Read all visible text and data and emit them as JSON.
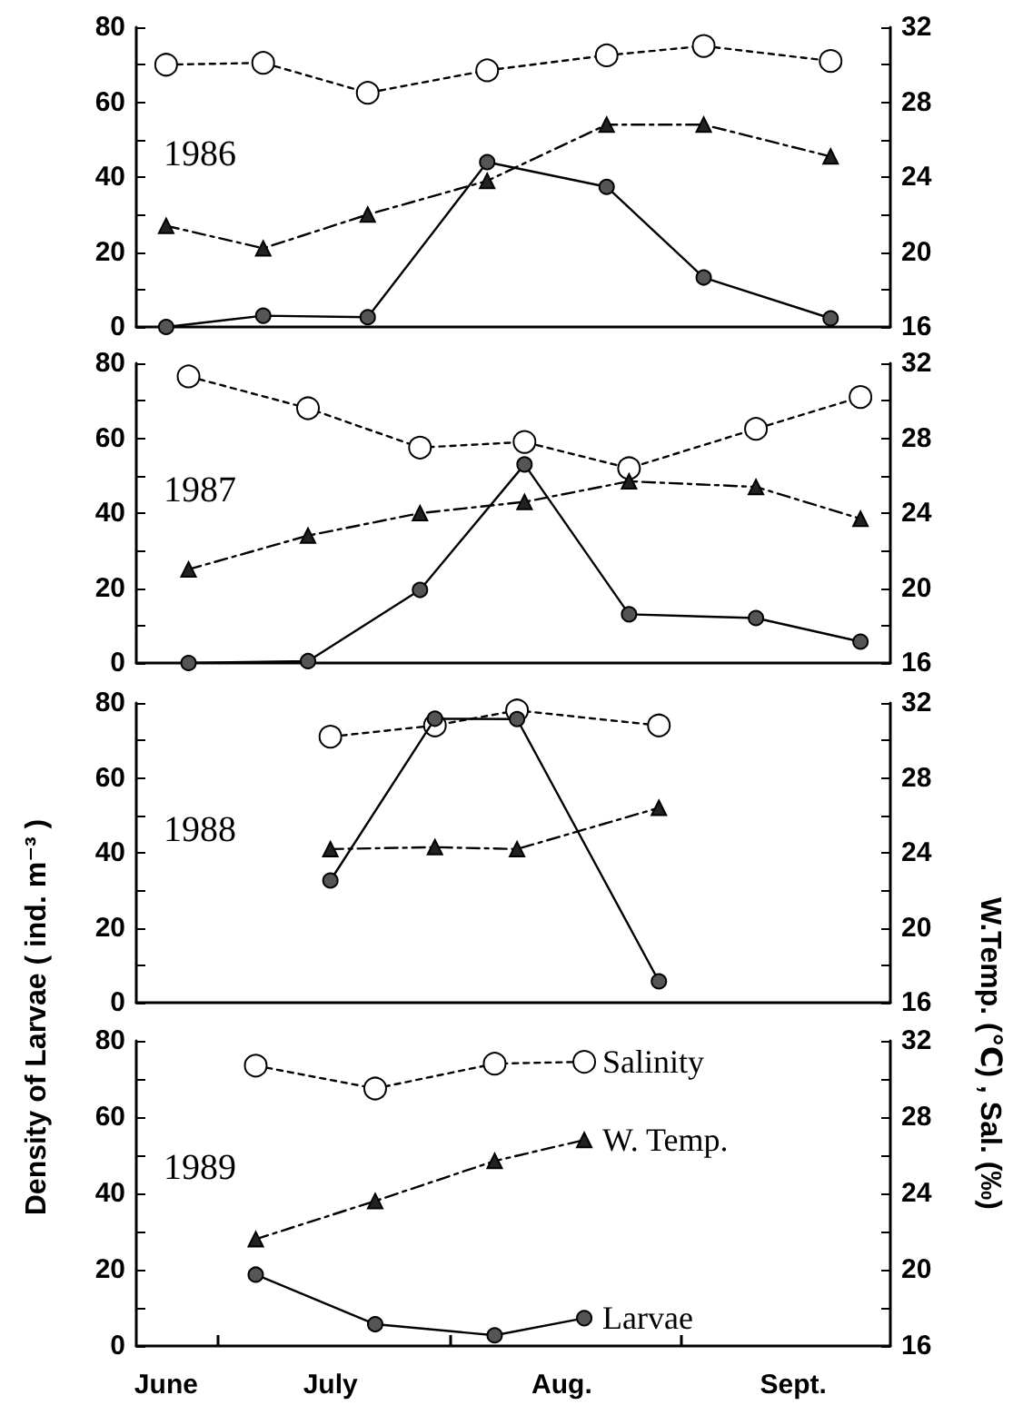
{
  "chart_data": [
    {
      "type": "line",
      "annotations": [
        "1986"
      ],
      "x": [
        "--06-24",
        "--07-07",
        "--07-21",
        "--08-06",
        "--08-22",
        "--09-04",
        "--09-21"
      ],
      "xlim": [
        "--06-20",
        "--09-29"
      ],
      "ylim": [
        0,
        80
      ],
      "yticks": [
        0,
        {
          "value": 10,
          "label": null
        },
        20,
        {
          "value": 30,
          "label": null
        },
        40,
        {
          "value": 50,
          "label": null
        },
        60,
        {
          "value": 70,
          "label": null
        },
        80
      ],
      "y2lim": [
        16,
        32
      ],
      "y2ticks": [
        16,
        {
          "value": 18,
          "label": null
        },
        20,
        {
          "value": 22,
          "label": null
        },
        24,
        {
          "value": 26,
          "label": null
        },
        28,
        {
          "value": 30,
          "label": null
        },
        32
      ],
      "tick_labels": "y",
      "grid": false,
      "series": [
        {
          "color": "#ffffff",
          "marker": "circle",
          "line_style": "dotted",
          "axis": "y2",
          "values": [
            30.0,
            30.1,
            28.5,
            29.7,
            30.5,
            31.0,
            30.2
          ]
        },
        {
          "color": "#222222",
          "marker": "triangle",
          "line_style": "dashed",
          "axis": "y2",
          "values": [
            21.4,
            20.2,
            22.0,
            23.8,
            26.8,
            26.8,
            25.1
          ]
        },
        {
          "color": "#555555",
          "marker": "circle",
          "line_style": "solid",
          "values": [
            0,
            3,
            2.6,
            44,
            37.4,
            13.2,
            2.3
          ]
        }
      ]
    },
    {
      "type": "line",
      "annotations": [
        "1987"
      ],
      "x": [
        "--06-27",
        "--07-13",
        "--07-28",
        "--08-11",
        "--08-25",
        "--09-11",
        "--09-25"
      ],
      "xlim": [
        "--06-20",
        "--09-29"
      ],
      "ylim": [
        0,
        80
      ],
      "yticks": [
        0,
        {
          "value": 10,
          "label": null
        },
        20,
        {
          "value": 30,
          "label": null
        },
        40,
        {
          "value": 50,
          "label": null
        },
        60,
        {
          "value": 70,
          "label": null
        },
        80
      ],
      "y2lim": [
        16,
        32
      ],
      "y2ticks": [
        16,
        {
          "value": 18,
          "label": null
        },
        20,
        {
          "value": 22,
          "label": null
        },
        24,
        {
          "value": 26,
          "label": null
        },
        28,
        {
          "value": 30,
          "label": null
        },
        32
      ],
      "tick_labels": "y",
      "grid": false,
      "series": [
        {
          "color": "#ffffff",
          "marker": "circle",
          "line_style": "dotted",
          "axis": "y2",
          "values": [
            31.3,
            29.6,
            27.5,
            27.8,
            26.4,
            28.5,
            30.2
          ]
        },
        {
          "color": "#222222",
          "marker": "triangle",
          "line_style": "dashed",
          "axis": "y2",
          "values": [
            21.0,
            22.8,
            24.0,
            24.6,
            25.7,
            25.4,
            23.7
          ]
        },
        {
          "color": "#555555",
          "marker": "circle",
          "line_style": "solid",
          "values": [
            0,
            0.5,
            19.5,
            53,
            13,
            12,
            5.7
          ]
        }
      ]
    },
    {
      "type": "line",
      "annotations": [
        "1988"
      ],
      "x": [
        "--07-16",
        "--07-30",
        "--08-10",
        "--08-29"
      ],
      "xlim": [
        "--06-20",
        "--09-29"
      ],
      "ylim": [
        0,
        80
      ],
      "yticks": [
        0,
        {
          "value": 10,
          "label": null
        },
        20,
        {
          "value": 30,
          "label": null
        },
        40,
        {
          "value": 50,
          "label": null
        },
        60,
        {
          "value": 70,
          "label": null
        },
        80
      ],
      "y2lim": [
        16,
        32
      ],
      "y2ticks": [
        16,
        {
          "value": 18,
          "label": null
        },
        20,
        {
          "value": 22,
          "label": null
        },
        24,
        {
          "value": 26,
          "label": null
        },
        28,
        {
          "value": 30,
          "label": null
        },
        32
      ],
      "tick_labels": "y",
      "grid": false,
      "series": [
        {
          "color": "#ffffff",
          "marker": "circle",
          "line_style": "dotted",
          "axis": "y2",
          "values": [
            30.2,
            30.8,
            31.6,
            30.8
          ]
        },
        {
          "color": "#222222",
          "marker": "triangle",
          "line_style": "dashed",
          "axis": "y2",
          "values": [
            24.2,
            24.3,
            24.2,
            26.4
          ]
        },
        {
          "color": "#555555",
          "marker": "circle",
          "line_style": "solid",
          "values": [
            32.6,
            75.8,
            75.7,
            5.7
          ]
        }
      ]
    },
    {
      "type": "line",
      "annotations": [
        "1989"
      ],
      "ylabel": "Density of Larvae ( ind. m⁻³ )",
      "y2label": "W.Temp. (℃) , Sal. (‰)",
      "x": [
        "--07-06",
        "--07-22",
        "--08-07",
        "--08-19"
      ],
      "xlim": [
        "--06-20",
        "--09-29"
      ],
      "xticks": [
        {
          "value": "--06-24",
          "label": "June"
        },
        {
          "value": "--07-01",
          "label": null
        },
        {
          "value": "--07-16",
          "label": "July"
        },
        {
          "value": "--08-01",
          "label": null
        },
        {
          "value": "--08-16",
          "label": "Aug."
        },
        {
          "value": "--09-01",
          "label": null
        },
        {
          "value": "--09-16",
          "label": "Sept."
        }
      ],
      "ylim": [
        0,
        80
      ],
      "yticks": [
        0,
        {
          "value": 10,
          "label": null
        },
        20,
        {
          "value": 30,
          "label": null
        },
        40,
        {
          "value": 50,
          "label": null
        },
        60,
        {
          "value": 70,
          "label": null
        },
        80
      ],
      "y2lim": [
        16,
        32
      ],
      "y2ticks": [
        16,
        {
          "value": 18,
          "label": null
        },
        20,
        {
          "value": 22,
          "label": null
        },
        24,
        {
          "value": 26,
          "label": null
        },
        28,
        {
          "value": 30,
          "label": null
        },
        32
      ],
      "grid": false,
      "series": [
        {
          "name": "Salinity",
          "color": "#ffffff",
          "marker": "circle",
          "line_style": "dotted",
          "axis": "y2",
          "values": [
            30.7,
            29.5,
            30.8,
            30.9
          ]
        },
        {
          "name": "W. Temp.",
          "color": "#222222",
          "marker": "triangle",
          "line_style": "dashed",
          "axis": "y2",
          "values": [
            21.6,
            23.6,
            25.7,
            26.8
          ]
        },
        {
          "name": "Larvae",
          "color": "#555555",
          "marker": "circle",
          "line_style": "solid",
          "values": [
            18.7,
            5.7,
            2.8,
            7.3
          ]
        }
      ]
    }
  ]
}
